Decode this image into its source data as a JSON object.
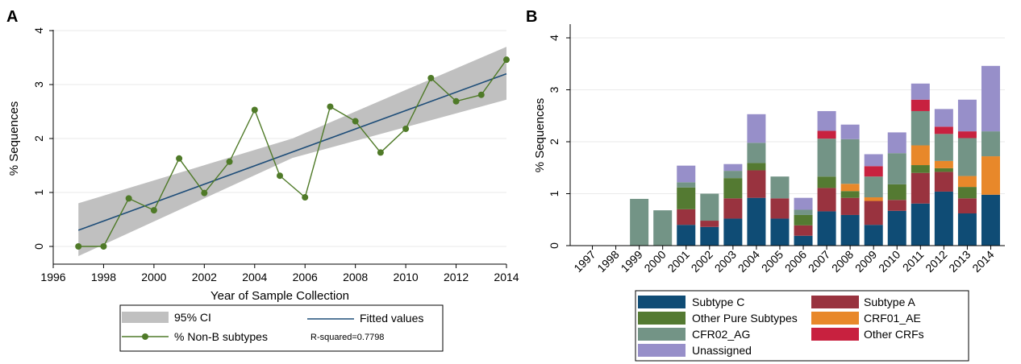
{
  "chart_data": [
    {
      "panel_label": "A",
      "type": "line",
      "xlabel": "Year of Sample Collection",
      "ylabel": "% Sequences",
      "xlim": [
        1996,
        2014
      ],
      "ylim": [
        0,
        4
      ],
      "xticks": [
        "1996",
        "1998",
        "2000",
        "2002",
        "2004",
        "2006",
        "2008",
        "2010",
        "2012",
        "2014"
      ],
      "yticks": [
        "0",
        "1",
        "2",
        "3",
        "4"
      ],
      "grid": true,
      "series": [
        {
          "name": "% Non-B subtypes",
          "color": "#4f7a28",
          "x": [
            1997,
            1998,
            1999,
            2000,
            2001,
            2002,
            2003,
            2004,
            2005,
            2006,
            2007,
            2008,
            2009,
            2010,
            2011,
            2012,
            2013,
            2014
          ],
          "y": [
            0,
            0,
            0.89,
            0.67,
            1.63,
            0.99,
            1.57,
            2.53,
            1.31,
            0.91,
            2.59,
            2.32,
            1.74,
            2.18,
            3.12,
            2.69,
            2.81,
            3.46
          ]
        },
        {
          "name": "Fitted values",
          "color": "#1f4e79",
          "x": [
            1997,
            2014
          ],
          "y": [
            0.3,
            3.2
          ]
        },
        {
          "name": "95% CI",
          "color": "#c0c0c0",
          "x": [
            1997,
            2005.5,
            2014
          ],
          "lower": [
            -0.18,
            1.64,
            2.72
          ],
          "upper": [
            0.8,
            2.0,
            3.7
          ]
        }
      ],
      "legend": {
        "items": [
          "95% CI",
          "Fitted values",
          "% Non-B subtypes"
        ],
        "note": "R-squared=0.7798"
      }
    },
    {
      "panel_label": "B",
      "type": "bar",
      "stacked": true,
      "ylabel": "% Sequences",
      "ylim": [
        0,
        4
      ],
      "yticks": [
        "0",
        "1",
        "2",
        "3",
        "4"
      ],
      "grid": true,
      "categories": [
        "1997",
        "1998",
        "1999",
        "2000",
        "2001",
        "2002",
        "2003",
        "2004",
        "2005",
        "2006",
        "2007",
        "2008",
        "2009",
        "2010",
        "2011",
        "2012",
        "2013",
        "2014"
      ],
      "series": [
        {
          "name": "Subtype C",
          "color": "#0f4c75",
          "values": [
            0,
            0,
            0,
            0,
            0.4,
            0.36,
            0.52,
            0.92,
            0.52,
            0.19,
            0.66,
            0.59,
            0.4,
            0.67,
            0.81,
            1.04,
            0.62,
            0.98
          ]
        },
        {
          "name": "Subtype A",
          "color": "#99333f",
          "values": [
            0,
            0,
            0,
            0,
            0.3,
            0.12,
            0.39,
            0.53,
            0.39,
            0.2,
            0.45,
            0.33,
            0.46,
            0.21,
            0.59,
            0.38,
            0.29,
            0
          ]
        },
        {
          "name": "Other Pure Subtypes",
          "color": "#547a32",
          "values": [
            0,
            0,
            0,
            0,
            0.42,
            0,
            0.39,
            0.14,
            0,
            0.2,
            0.22,
            0.13,
            0,
            0.3,
            0.15,
            0.07,
            0.22,
            0
          ]
        },
        {
          "name": "CRF01_AE",
          "color": "#e8882a",
          "values": [
            0,
            0,
            0,
            0,
            0,
            0,
            0,
            0,
            0,
            0,
            0,
            0.14,
            0.07,
            0,
            0.38,
            0.14,
            0.21,
            0.74
          ]
        },
        {
          "name": "CFR02_AG",
          "color": "#739486",
          "values": [
            0,
            0,
            0.9,
            0.68,
            0.1,
            0.52,
            0.14,
            0.39,
            0.42,
            0.1,
            0.73,
            0.86,
            0.4,
            0.6,
            0.66,
            0.52,
            0.73,
            0.48
          ]
        },
        {
          "name": "Other CRFs",
          "color": "#c8213f",
          "values": [
            0,
            0,
            0,
            0,
            0,
            0,
            0,
            0,
            0,
            0,
            0.15,
            0,
            0.2,
            0,
            0.22,
            0.14,
            0.13,
            0
          ]
        },
        {
          "name": "Unassigned",
          "color": "#978fc9",
          "values": [
            0,
            0,
            0,
            0,
            0.32,
            0,
            0.13,
            0.55,
            0,
            0.23,
            0.38,
            0.28,
            0.23,
            0.4,
            0.31,
            0.34,
            0.61,
            1.26
          ]
        }
      ],
      "legend": {
        "items": [
          "Subtype C",
          "Subtype A",
          "Other Pure Subtypes",
          "CRF01_AE",
          "CFR02_AG",
          "Other CRFs",
          "Unassigned"
        ]
      }
    }
  ]
}
